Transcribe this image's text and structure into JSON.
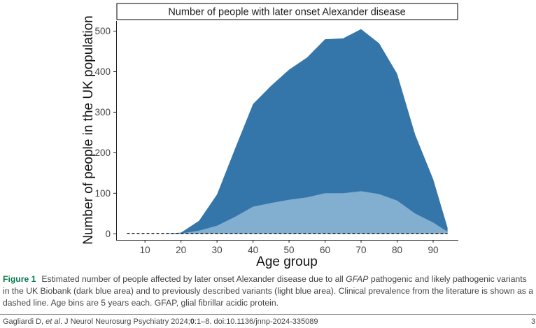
{
  "chart_data": {
    "type": "area",
    "title": "Number of people with later onset Alexander disease",
    "xlabel": "Age group",
    "ylabel": "Number of people in the UK population",
    "xlim": [
      2,
      97
    ],
    "ylim": [
      -15,
      525
    ],
    "x_ticks": [
      10,
      20,
      30,
      40,
      50,
      60,
      70,
      80,
      90
    ],
    "y_ticks": [
      0,
      100,
      200,
      300,
      400,
      500
    ],
    "grid": false,
    "legend": "none",
    "series": [
      {
        "color": "#3576aa",
        "style": "area",
        "x": [
          15,
          20,
          25,
          30,
          35,
          40,
          45,
          50,
          55,
          60,
          65,
          70,
          75,
          80,
          85,
          90,
          94
        ],
        "y": [
          0,
          3,
          32,
          97,
          210,
          320,
          365,
          405,
          435,
          480,
          482,
          505,
          470,
          395,
          245,
          135,
          15
        ]
      },
      {
        "color": "#82aed0",
        "style": "area",
        "x": [
          15,
          20,
          25,
          30,
          35,
          40,
          45,
          50,
          55,
          60,
          65,
          70,
          75,
          80,
          85,
          90,
          94
        ],
        "y": [
          0,
          1,
          8,
          20,
          42,
          67,
          76,
          84,
          90,
          100,
          100,
          105,
          98,
          82,
          50,
          28,
          5
        ]
      },
      {
        "color": "#000000",
        "style": "dashed-line",
        "x": [
          5,
          94
        ],
        "y": [
          1,
          1
        ]
      }
    ]
  },
  "caption": {
    "label": "Figure 1",
    "text_before": "Estimated number of people affected by later onset Alexander disease due to all ",
    "gene": "GFAP",
    "text_after": " pathogenic and likely pathogenic variants in the UK Biobank (dark blue area) and to previously described variants (light blue area). Clinical prevalence from the literature is shown as a dashed line. Age bins are 5 years each. GFAP, glial fibrillar acidic protein."
  },
  "footer": {
    "authors": "Gagliardi D, ",
    "etal": "et al",
    "journal": ". J Neurol Neurosurg Psychiatry",
    "year_vol": " 2024;",
    "vol": "0",
    "pages_doi": ":1–8. doi:10.1136/jnnp-2024-335089",
    "page_number": "3"
  }
}
